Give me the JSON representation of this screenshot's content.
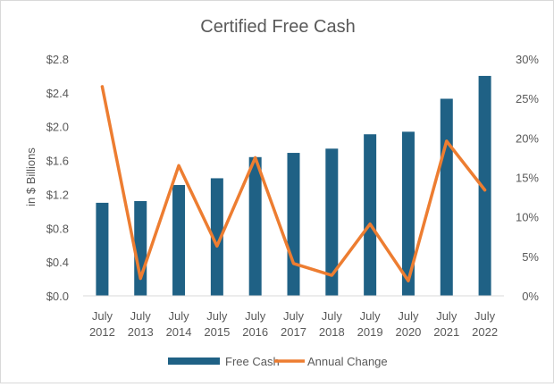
{
  "chart_data": {
    "type": "bar",
    "title": "Certified Free Cash",
    "ylabel": "in $ Billions",
    "y2label": "",
    "categories": [
      [
        "July",
        "2012"
      ],
      [
        "July",
        "2013"
      ],
      [
        "July",
        "2014"
      ],
      [
        "July",
        "2015"
      ],
      [
        "July",
        "2016"
      ],
      [
        "July",
        "2017"
      ],
      [
        "July",
        "2018"
      ],
      [
        "July",
        "2019"
      ],
      [
        "July",
        "2020"
      ],
      [
        "July",
        "2021"
      ],
      [
        "July",
        "2022"
      ]
    ],
    "series": [
      {
        "name": "Free Cash",
        "type": "bar",
        "axis": "left",
        "color": "#1f6185",
        "values": [
          1.1,
          1.12,
          1.31,
          1.39,
          1.64,
          1.69,
          1.74,
          1.91,
          1.94,
          2.33,
          2.6
        ]
      },
      {
        "name": "Annual Change",
        "type": "line",
        "axis": "right",
        "color": "#ed7d31",
        "values": [
          26.5,
          2.2,
          16.5,
          6.3,
          17.5,
          4.1,
          2.6,
          9.1,
          1.9,
          19.6,
          13.4
        ]
      }
    ],
    "ylim": [
      0,
      2.8
    ],
    "yticks": [
      "$0.0",
      "$0.4",
      "$0.8",
      "$1.2",
      "$1.6",
      "$2.0",
      "$2.4",
      "$2.8"
    ],
    "ytick_values": [
      0,
      0.4,
      0.8,
      1.2,
      1.6,
      2.0,
      2.4,
      2.8
    ],
    "y2lim": [
      0,
      30
    ],
    "y2ticks": [
      "0%",
      "5%",
      "10%",
      "15%",
      "20%",
      "25%",
      "30%"
    ],
    "y2tick_values": [
      0,
      5,
      10,
      15,
      20,
      25,
      30
    ],
    "grid": false,
    "legend_position": "bottom"
  }
}
